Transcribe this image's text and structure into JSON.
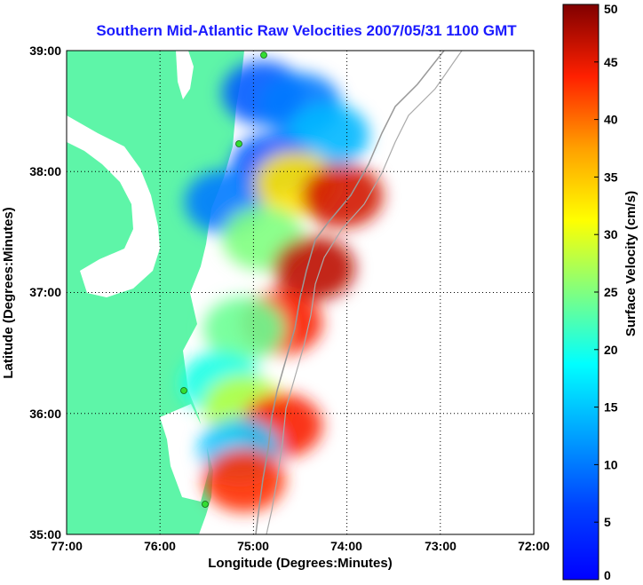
{
  "chart_data": {
    "type": "heatmap",
    "title": "Southern Mid-Atlantic Raw Velocities 2007/05/31 1100 GMT",
    "xlabel": "Longitude (Degrees:Minutes)",
    "ylabel": "Latitude (Degrees:Minutes)",
    "colorbar_label": "Surface Velocity (cm/s)",
    "x_ticks": [
      "77:00",
      "76:00",
      "75:00",
      "74:00",
      "73:00",
      "72:00"
    ],
    "x_tick_values": [
      -77,
      -76,
      -75,
      -74,
      -73,
      -72
    ],
    "y_ticks": [
      "39:00",
      "38:00",
      "37:00",
      "36:00",
      "35:00"
    ],
    "y_tick_values": [
      39,
      38,
      37,
      36,
      35
    ],
    "xlim": [
      -77,
      -72
    ],
    "ylim": [
      35,
      39
    ],
    "colorbar_ticks": [
      0,
      5,
      10,
      15,
      20,
      25,
      30,
      35,
      40,
      45,
      50
    ],
    "colorbar_range": [
      0,
      50
    ],
    "colormap": "jet",
    "grid": true,
    "land_color": "#5ef5a8",
    "velocity_regions": [
      {
        "lon": -74.9,
        "lat": 38.65,
        "value": 8
      },
      {
        "lon": -74.5,
        "lat": 38.55,
        "value": 10
      },
      {
        "lon": -74.2,
        "lat": 38.3,
        "value": 14
      },
      {
        "lon": -74.8,
        "lat": 38.05,
        "value": 8
      },
      {
        "lon": -75.3,
        "lat": 37.75,
        "value": 10
      },
      {
        "lon": -74.55,
        "lat": 37.9,
        "value": 33
      },
      {
        "lon": -74.05,
        "lat": 37.8,
        "value": 46
      },
      {
        "lon": -74.9,
        "lat": 37.45,
        "value": 25
      },
      {
        "lon": -74.35,
        "lat": 37.2,
        "value": 47
      },
      {
        "lon": -74.7,
        "lat": 36.75,
        "value": 44
      },
      {
        "lon": -75.1,
        "lat": 36.7,
        "value": 24
      },
      {
        "lon": -75.35,
        "lat": 36.25,
        "value": 20
      },
      {
        "lon": -75.1,
        "lat": 36.05,
        "value": 28
      },
      {
        "lon": -74.7,
        "lat": 35.9,
        "value": 44
      },
      {
        "lon": -75.15,
        "lat": 35.7,
        "value": 15
      },
      {
        "lon": -75.1,
        "lat": 35.45,
        "value": 43
      }
    ]
  }
}
